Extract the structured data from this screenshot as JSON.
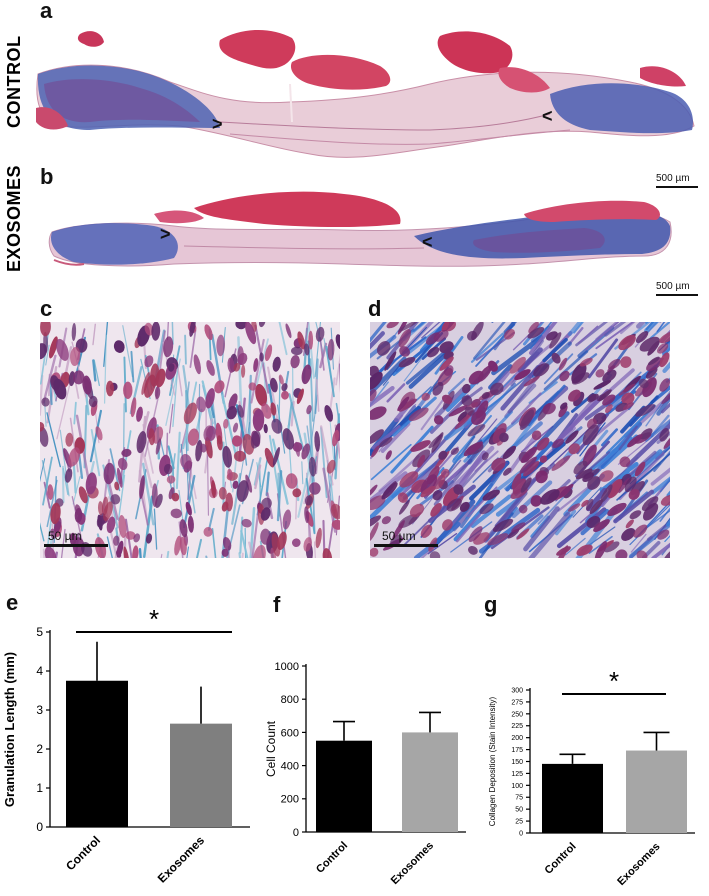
{
  "panels": {
    "a": "a",
    "b": "b",
    "c": "c",
    "d": "d",
    "e": "e",
    "f": "f",
    "g": "g"
  },
  "rows": {
    "control_label": "CONTROL",
    "exosomes_label": "EXOSOMES"
  },
  "scale": {
    "histology_a": "500 µm",
    "histology_b": "500 µm",
    "micro_c": "50 µm",
    "micro_d": "50 µm"
  },
  "markers": {
    "chevron_a_left": ">",
    "chevron_a_right": "<",
    "chevron_b_left": ">",
    "chevron_b_right": "<"
  },
  "colors": {
    "control_bar": "#000000",
    "exosomes_bar_e": "#7f7f7f",
    "exosomes_bar_f": "#a6a6a6",
    "exosomes_bar_g": "#a6a6a6",
    "tissue_pink": "#d9a6b8",
    "tissue_red": "#cf3b5b",
    "tissue_blue": "#3550a8",
    "tissue_purple": "#7a3778"
  },
  "chart_data": [
    {
      "type": "bar",
      "panel": "e",
      "categories": [
        "Control",
        "Exosomes"
      ],
      "values": [
        3.75,
        2.65
      ],
      "errors": [
        1.0,
        0.95
      ],
      "ylabel": "Granulation  Length (mm)",
      "ylim": [
        0,
        5
      ],
      "yticks": [
        "0",
        "1",
        "2",
        "3",
        "4",
        "5"
      ],
      "significance": "*"
    },
    {
      "type": "bar",
      "panel": "f",
      "categories": [
        "Control",
        "Exosomes"
      ],
      "values": [
        550,
        600
      ],
      "errors": [
        115,
        120
      ],
      "ylabel": "Cell Count",
      "ylim": [
        0,
        1000
      ],
      "yticks": [
        "0",
        "200",
        "400",
        "600",
        "800",
        "1000"
      ]
    },
    {
      "type": "bar",
      "panel": "g",
      "categories": [
        "Control",
        "Exosomes"
      ],
      "values": [
        145,
        173
      ],
      "errors": [
        20,
        38
      ],
      "ylabel": "Collagen Deposition (Stain Intensity)",
      "ylim": [
        0,
        300
      ],
      "yticks": [
        "0",
        "25",
        "50",
        "75",
        "100",
        "125",
        "150",
        "175",
        "200",
        "225",
        "250",
        "275",
        "300"
      ],
      "significance": "*"
    }
  ]
}
